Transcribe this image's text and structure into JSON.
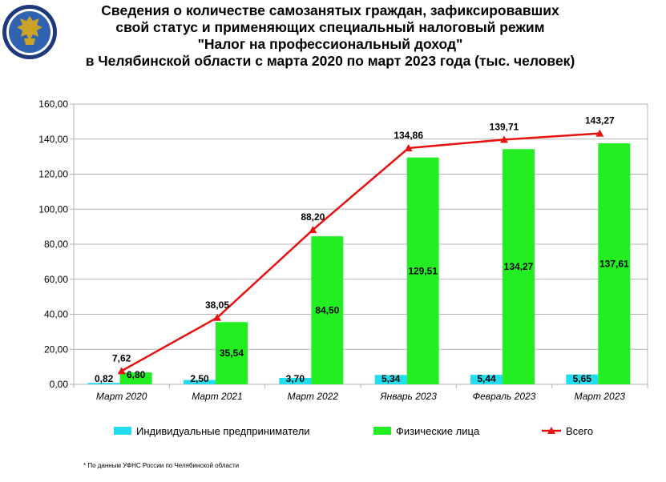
{
  "title": {
    "lines": [
      "Сведения о количестве самозанятых граждан, зафиксировавших",
      "свой статус и применяющих специальный налоговый режим",
      "\"Налог на профессиональный доход\"",
      "в Челябинской области с марта 2020 по март 2023 года (тыс. человек)"
    ]
  },
  "emblem": {
    "icon": "fns-emblem-icon",
    "colors": {
      "ring": "#1f3a7a",
      "field": "#2f63b0",
      "gold": "#c9a227"
    }
  },
  "chart_data": {
    "type": "bar",
    "categories": [
      "Март 2020",
      "Март 2021",
      "Март 2022",
      "Январь 2023",
      "Февраль 2023",
      "Март 2023"
    ],
    "ylim": [
      0,
      160
    ],
    "yticks": [
      "0,00",
      "20,00",
      "40,00",
      "60,00",
      "80,00",
      "100,00",
      "120,00",
      "140,00",
      "160,00"
    ],
    "grid": true,
    "legend_position": "bottom",
    "series": [
      {
        "name": "Индивидуальные предприниматели",
        "type": "bar",
        "color": "#22ddee",
        "values": [
          0.82,
          2.5,
          3.7,
          5.34,
          5.44,
          5.65
        ],
        "labels": [
          "0,82",
          "2,50",
          "3,70",
          "5,34",
          "5,44",
          "5,65"
        ]
      },
      {
        "name": "Физические лица",
        "type": "bar",
        "color": "#22ee22",
        "values": [
          6.8,
          35.54,
          84.5,
          129.51,
          134.27,
          137.61
        ],
        "labels": [
          "6,80",
          "35,54",
          "84,50",
          "129,51",
          "134,27",
          "137,61"
        ]
      },
      {
        "name": "Всего",
        "type": "line",
        "color": "#e81010",
        "values": [
          7.62,
          38.05,
          88.2,
          134.86,
          139.71,
          143.27
        ],
        "labels": [
          "7,62",
          "38,05",
          "88,20",
          "134,86",
          "139,71",
          "143,27"
        ]
      }
    ]
  },
  "footnote": "* По данным УФНС России по Челябинской области"
}
